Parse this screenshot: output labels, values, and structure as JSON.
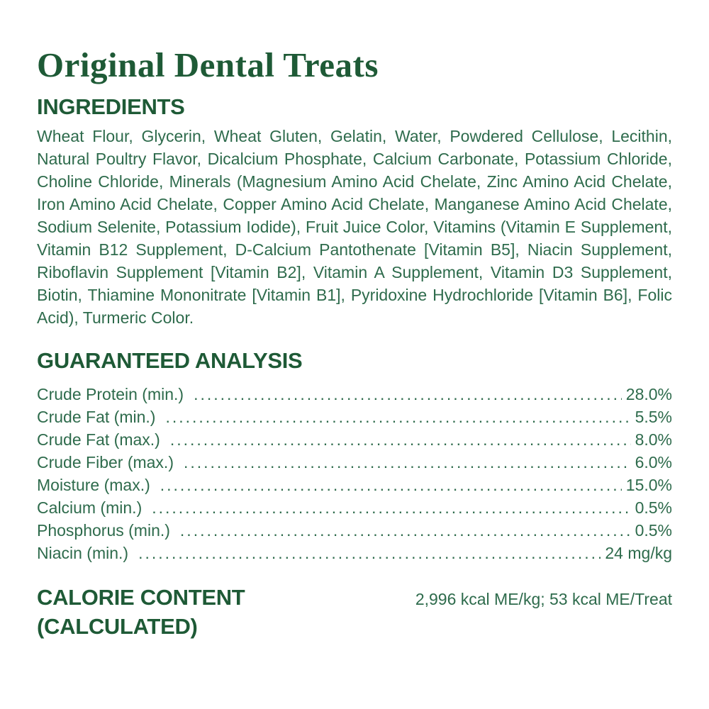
{
  "title": "Original Dental Treats",
  "colors": {
    "heading_green": "#1e5a36",
    "body_green": "#2e6b4c",
    "background": "#ffffff"
  },
  "ingredients": {
    "heading": "INGREDIENTS",
    "text": "Wheat Flour, Glycerin, Wheat Gluten, Gelatin, Water, Powdered Cellulose, Lecithin, Natural Poultry Flavor, Dicalcium Phosphate, Calcium Carbonate, Potassium Chloride, Choline Chloride, Minerals (Magnesium Amino Acid Chelate, Zinc Amino Acid Chelate, Iron Amino Acid Chelate, Copper Amino Acid Chelate, Manganese Amino Acid Chelate, Sodium Selenite, Potassium Iodide), Fruit Juice Color, Vitamins (Vitamin E Supplement, Vitamin B12 Supplement, D-Calcium Pantothenate [Vitamin B5], Niacin Supplement, Riboflavin Supplement [Vitamin B2], Vitamin A Supplement, Vitamin D3 Supplement, Biotin, Thiamine Mononitrate [Vitamin B1], Pyridoxine Hydrochloride [Vitamin B6], Folic Acid), Turmeric Color."
  },
  "guaranteed_analysis": {
    "heading": "GUARANTEED ANALYSIS",
    "rows": [
      {
        "label": "Crude Protein (min.)",
        "value": "28.0%"
      },
      {
        "label": "Crude Fat (min.)",
        "value": "5.5%"
      },
      {
        "label": "Crude Fat (max.)",
        "value": "8.0%"
      },
      {
        "label": "Crude Fiber (max.)",
        "value": "6.0%"
      },
      {
        "label": "Moisture (max.)",
        "value": "15.0%"
      },
      {
        "label": "Calcium (min.)",
        "value": "0.5%"
      },
      {
        "label": "Phosphorus (min.)",
        "value": "0.5%"
      },
      {
        "label": "Niacin (min.)",
        "value": "24 mg/kg"
      }
    ]
  },
  "calorie_content": {
    "heading_line1": "CALORIE CONTENT",
    "heading_line2": "(CALCULATED)",
    "value": "2,996 kcal ME/kg; 53 kcal ME/Treat"
  }
}
